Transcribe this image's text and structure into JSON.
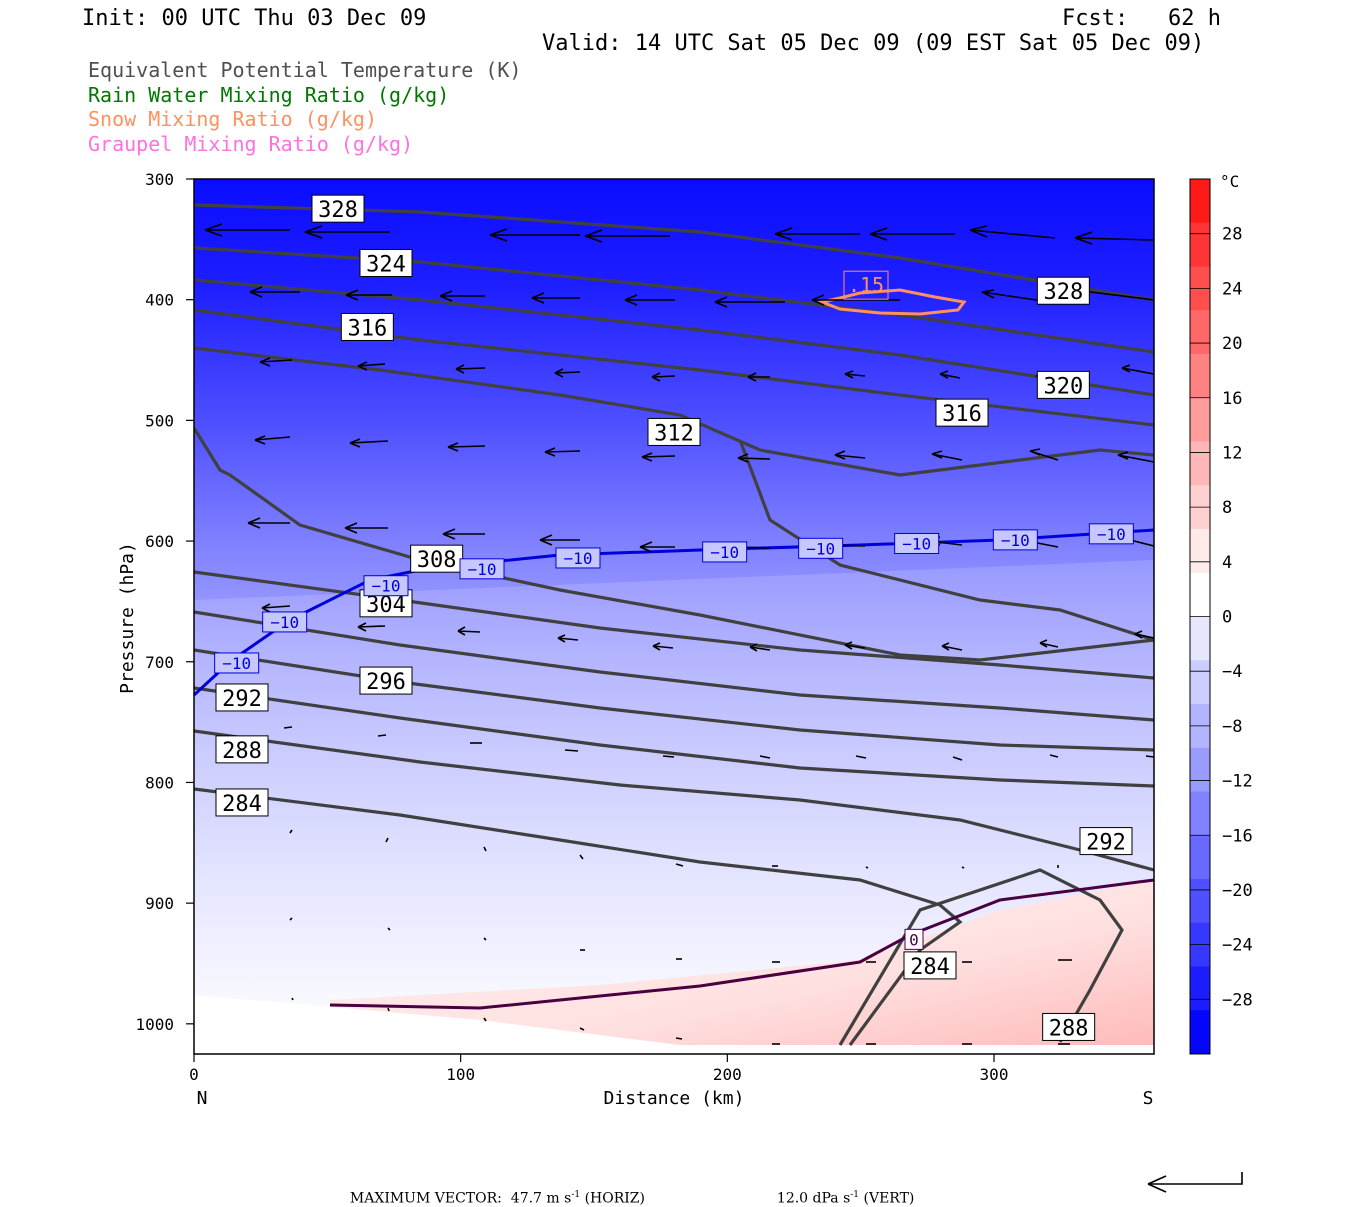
{
  "header": {
    "init": "Init: 00 UTC Thu 03 Dec 09",
    "fcst": "Fcst:   62 h",
    "valid": "Valid: 14 UTC Sat 05 Dec 09 (09 EST Sat 05 Dec 09)"
  },
  "legend": [
    {
      "label": "Equivalent Potential Temperature (K)",
      "color": "#505050"
    },
    {
      "label": "Rain Water Mixing Ratio (g/kg)",
      "color": "#007800"
    },
    {
      "label": "Snow Mixing Ratio (g/kg)",
      "color": "#ff9060"
    },
    {
      "label": "Graupel Mixing Ratio (g/kg)",
      "color": "#ff70e0"
    }
  ],
  "footer": {
    "max_vector": "MAXIMUM VECTOR:  47.7 m s",
    "horiz": "(HORIZ)",
    "vert_value": "12.0 dPa s",
    "vert": "(VERT)",
    "exp": "-1"
  },
  "chart_data": {
    "type": "contour",
    "xlabel": "Distance (km)",
    "ylabel": "Pressure (hPa)",
    "xlim": [
      0,
      360
    ],
    "ylim": [
      1025,
      300
    ],
    "x_ticks": [
      "0",
      "100",
      "200",
      "300"
    ],
    "x_tick_values": [
      0,
      100,
      200,
      300
    ],
    "y_ticks": [
      "300",
      "400",
      "500",
      "600",
      "700",
      "800",
      "900",
      "1000"
    ],
    "y_tick_values": [
      300,
      400,
      500,
      600,
      700,
      800,
      900,
      1000
    ],
    "left_end_label": "N",
    "right_end_label": "S",
    "colorbar": {
      "unit": "°C",
      "labels": [
        "28",
        "24",
        "20",
        "16",
        "12",
        "8",
        "4",
        "0",
        "−4",
        "−8",
        "−12",
        "−16",
        "−20",
        "−24",
        "−28"
      ],
      "values": [
        28,
        24,
        20,
        16,
        12,
        8,
        4,
        0,
        -4,
        -8,
        -12,
        -16,
        -20,
        -24,
        -28
      ],
      "colors": [
        "#ff1a1a",
        "#ff3535",
        "#ff4e4e",
        "#ff6868",
        "#ff8282",
        "#ff9c9c",
        "#ffb6b6",
        "#ffd0d0",
        "#ffeaea",
        "#ffffff",
        "#e6e6ff",
        "#cccdff",
        "#b3b4ff",
        "#9a9bff",
        "#8182ff",
        "#6869ff",
        "#4f50ff",
        "#3637ff",
        "#1d1eff",
        "#0405ff"
      ]
    },
    "theta_e_labels": [
      {
        "text": "328",
        "x": 54,
        "p": 325
      },
      {
        "text": "324",
        "x": 72,
        "p": 370
      },
      {
        "text": "316",
        "x": 65,
        "p": 423
      },
      {
        "text": "312",
        "x": 180,
        "p": 510
      },
      {
        "text": "308",
        "x": 91,
        "p": 615
      },
      {
        "text": "304",
        "x": 72,
        "p": 652
      },
      {
        "text": "296",
        "x": 72,
        "p": 716
      },
      {
        "text": "292",
        "x": 18,
        "p": 730
      },
      {
        "text": "288",
        "x": 18,
        "p": 773
      },
      {
        "text": "284",
        "x": 18,
        "p": 817
      },
      {
        "text": "328",
        "x": 326,
        "p": 393
      },
      {
        "text": "320",
        "x": 326,
        "p": 471
      },
      {
        "text": "316",
        "x": 288,
        "p": 494
      },
      {
        "text": "292",
        "x": 342,
        "p": 849
      },
      {
        "text": "284",
        "x": 276,
        "p": 952
      },
      {
        "text": "288",
        "x": 328,
        "p": 1003
      }
    ],
    "isotherm_labels": [
      {
        "text": "−10",
        "x": 16,
        "p": 701
      },
      {
        "text": "−10",
        "x": 34,
        "p": 667
      },
      {
        "text": "−10",
        "x": 72,
        "p": 637
      },
      {
        "text": "−10",
        "x": 108,
        "p": 623
      },
      {
        "text": "−10",
        "x": 144,
        "p": 614
      },
      {
        "text": "−10",
        "x": 199,
        "p": 609
      },
      {
        "text": "−10",
        "x": 235,
        "p": 606
      },
      {
        "text": "−10",
        "x": 271,
        "p": 602
      },
      {
        "text": "−10",
        "x": 308,
        "p": 599
      },
      {
        "text": "−10",
        "x": 344,
        "p": 594
      },
      {
        "text": "0",
        "x": 270,
        "p": 930
      }
    ],
    "snow_label": {
      "text": ".15",
      "x": 252,
      "p": 388
    }
  }
}
